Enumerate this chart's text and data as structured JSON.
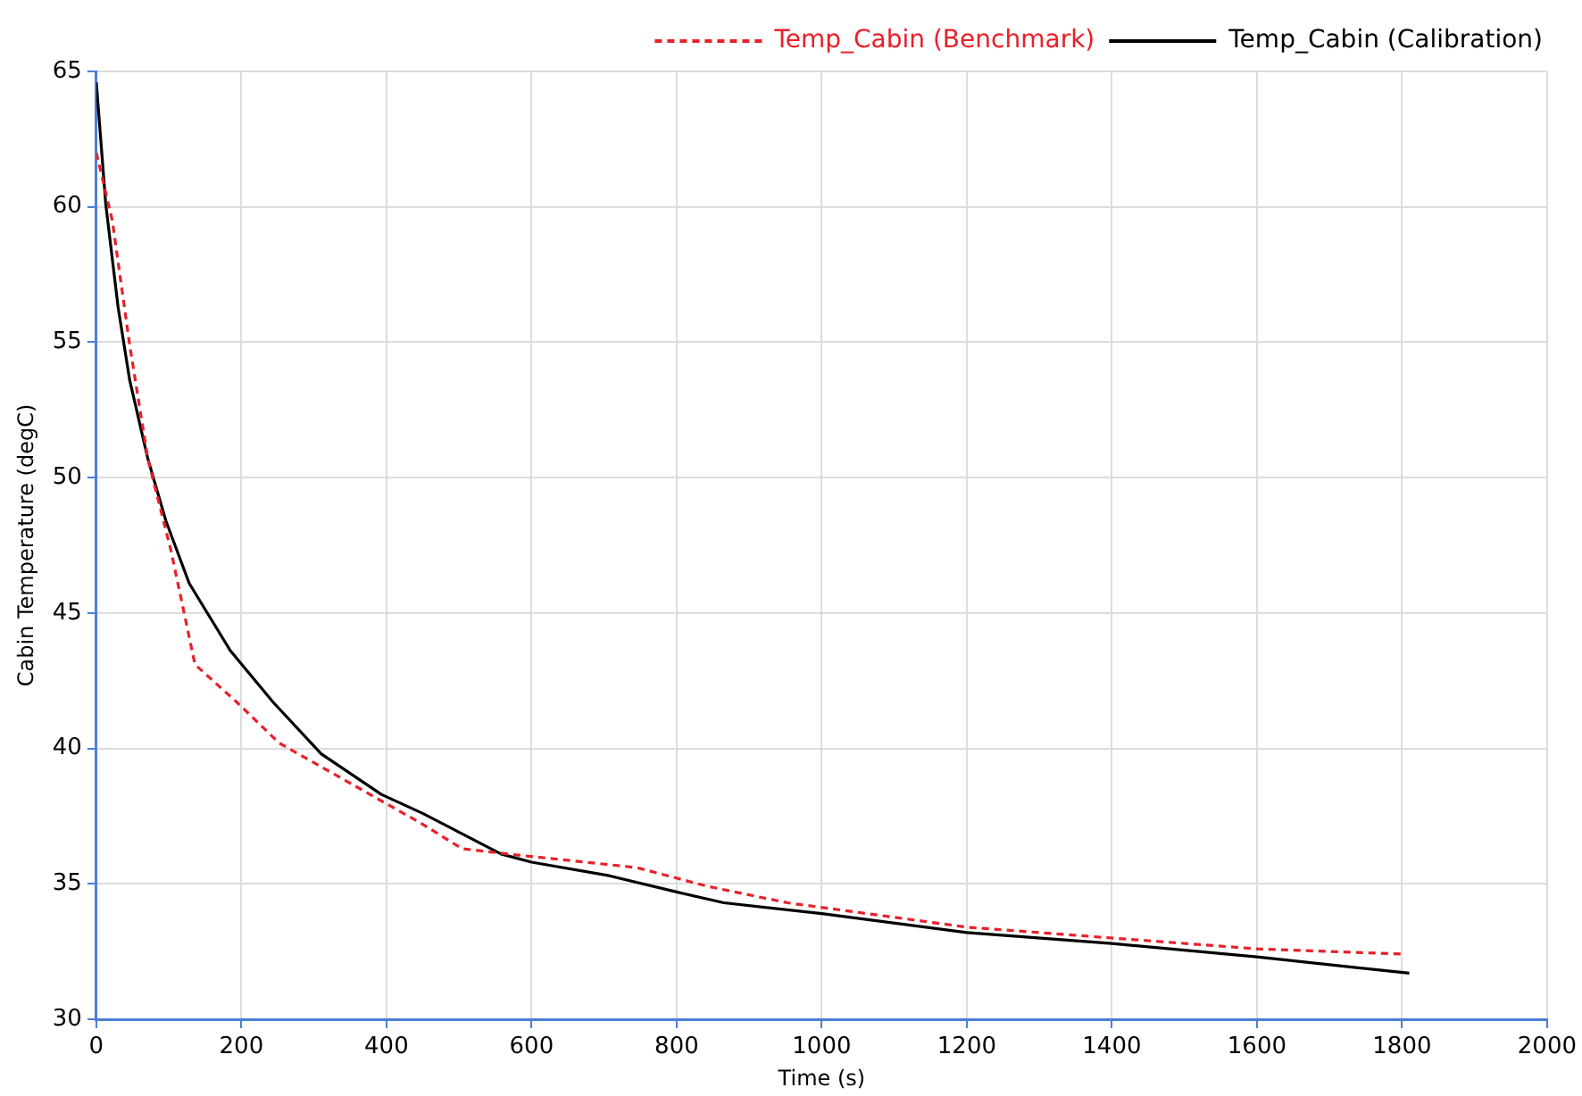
{
  "chart_data": {
    "type": "line",
    "xlabel": "Time (s)",
    "ylabel": "Cabin Temperature (degC)",
    "xlim": [
      0,
      2000
    ],
    "xticks": [
      0,
      200,
      400,
      600,
      800,
      1000,
      1200,
      1400,
      1600,
      1800,
      2000
    ],
    "ylim": [
      30,
      65
    ],
    "yticks": [
      30,
      35,
      40,
      45,
      50,
      55,
      60,
      65
    ],
    "grid": true,
    "legend": "top right",
    "marker": "none",
    "series": [
      {
        "name": "Temp_Cabin (Benchmark)",
        "color": "#e8202a",
        "line_style": "dashed",
        "x": [
          0,
          22,
          46,
          71,
          103,
          136,
          194,
          252,
          351,
          450,
          504,
          568,
          745,
          844,
          953,
          1200,
          1600,
          1805
        ],
        "values": [
          62,
          59.5,
          54.9,
          50.7,
          47.3,
          43.1,
          41.7,
          40.2,
          38.7,
          37.2,
          36.3,
          36.1,
          35.6,
          34.9,
          34.3,
          33.4,
          32.6,
          32.4
        ]
      },
      {
        "name": "Temp_Cabin (Calibration)",
        "color": "#000000",
        "line_style": "solid",
        "x": [
          0,
          13,
          30,
          46,
          71,
          96,
          128,
          185,
          244,
          310,
          393,
          450,
          558,
          600,
          707,
          800,
          865,
          1000,
          1200,
          1400,
          1600,
          1810
        ],
        "values": [
          64.6,
          60.1,
          56.3,
          53.6,
          50.7,
          48.4,
          46.1,
          43.6,
          41.7,
          39.8,
          38.3,
          37.6,
          36.1,
          35.8,
          35.3,
          34.7,
          34.3,
          33.9,
          33.2,
          32.8,
          32.3,
          31.7
        ]
      }
    ]
  }
}
